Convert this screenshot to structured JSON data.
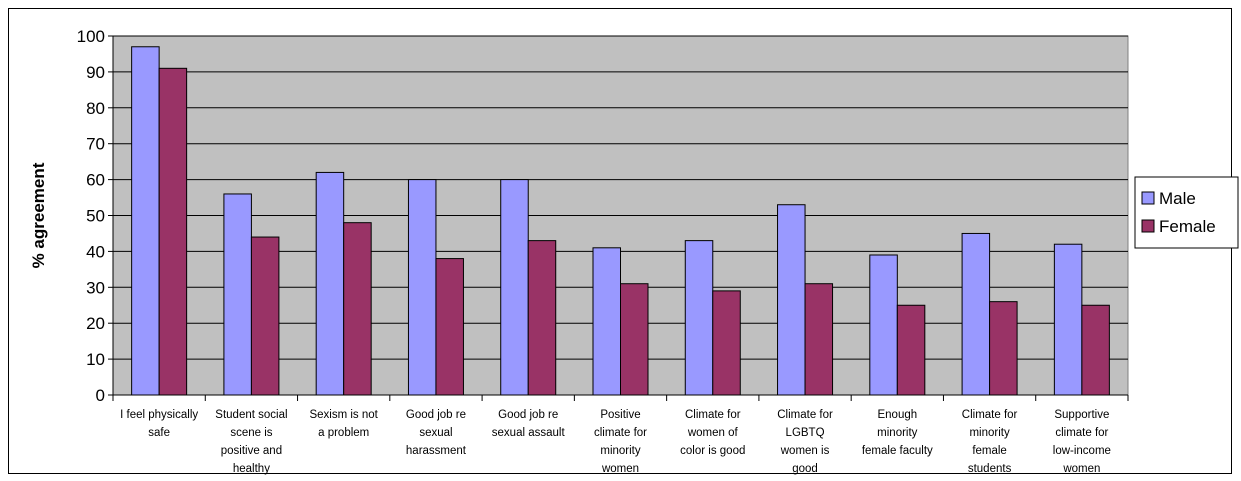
{
  "chart_data": {
    "type": "bar",
    "title": "",
    "xlabel": "",
    "ylabel": "% agreement",
    "ylim": [
      0,
      100
    ],
    "yticks": [
      0,
      10,
      20,
      30,
      40,
      50,
      60,
      70,
      80,
      90,
      100
    ],
    "grid": true,
    "legend_position": "right",
    "categories": [
      [
        "I feel physically",
        "safe"
      ],
      [
        "Student social",
        "scene is",
        "positive and",
        "healthy"
      ],
      [
        "Sexism is not",
        "a problem"
      ],
      [
        "Good job re",
        "sexual",
        "harassment"
      ],
      [
        "Good job re",
        "sexual assault"
      ],
      [
        "Positive",
        "climate for",
        "minority",
        "women"
      ],
      [
        "Climate for",
        "women of",
        "color is good"
      ],
      [
        "Climate for",
        "LGBTQ",
        "women is",
        "good"
      ],
      [
        "Enough",
        "minority",
        "female faculty"
      ],
      [
        "Climate for",
        "minority",
        "female",
        "students"
      ],
      [
        "Supportive",
        "climate for",
        "low-income",
        "women"
      ]
    ],
    "series": [
      {
        "name": "Male",
        "color": "#9999ff",
        "values": [
          97,
          56,
          62,
          60,
          60,
          41,
          43,
          53,
          39,
          45,
          42
        ]
      },
      {
        "name": "Female",
        "color": "#993366",
        "values": [
          91,
          44,
          48,
          38,
          43,
          31,
          29,
          31,
          25,
          26,
          25
        ]
      }
    ],
    "plot_background": "#c0c0c0"
  }
}
